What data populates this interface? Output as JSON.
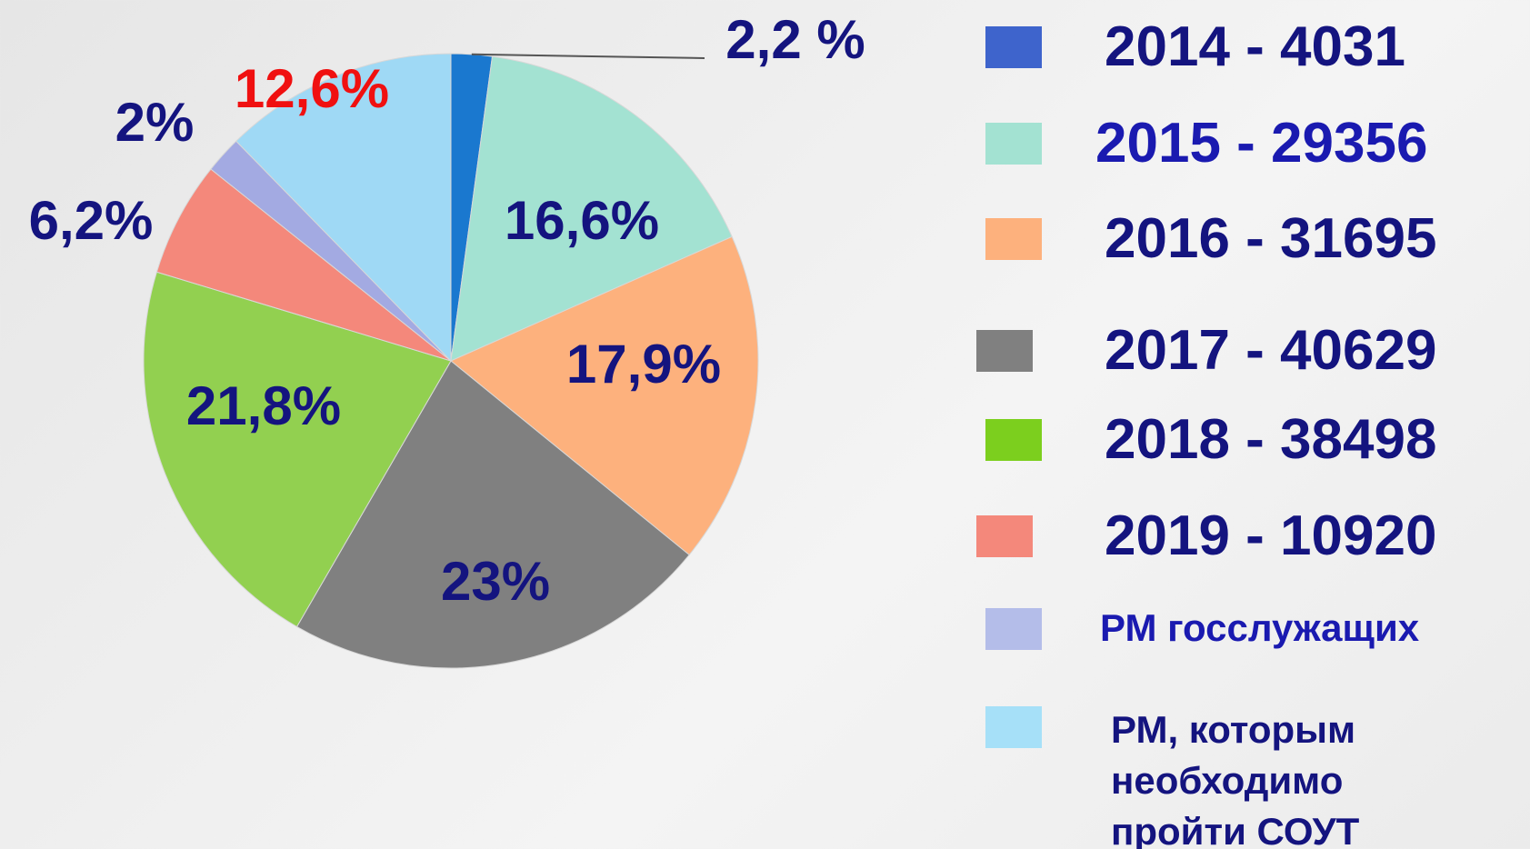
{
  "chart_data": {
    "type": "pie",
    "categories": [
      "2014 - 4031",
      "2015 - 29356",
      "2016 - 31695",
      "2017 - 40629",
      "2018 - 38498",
      "2019 - 10920",
      "РМ госслужащих",
      "РМ, которым необходимо пройти СОУТ"
    ],
    "values": [
      2.2,
      16.6,
      17.9,
      23,
      21.8,
      6.2,
      2,
      12.6
    ],
    "value_labels": [
      "2,2 %",
      "16,6%",
      "17,9%",
      "23%",
      "21,8%",
      "6,2%",
      "2%",
      "12,6%"
    ],
    "colors": [
      "#1a78cf",
      "#a3e2d2",
      "#fdb17d",
      "#808080",
      "#92d050",
      "#f4887b",
      "#a3aae2",
      "#9fd9f5"
    ],
    "legend_colors": [
      "#3e64cc",
      "#a3e2d2",
      "#fdb17d",
      "#808080",
      "#7ccf1e",
      "#f4887b",
      "#b4bde9",
      "#a6e0f8"
    ],
    "label_colors": [
      "#14147f",
      "#14147f",
      "#14147f",
      "#14147f",
      "#14147f",
      "#14147f",
      "#14147f",
      "#f01010"
    ],
    "legend_text_colors": [
      "#14147f",
      "#1a1ab0",
      "#14147f",
      "#14147f",
      "#14147f",
      "#14147f",
      "#1a1ab0",
      "#14147f"
    ]
  }
}
